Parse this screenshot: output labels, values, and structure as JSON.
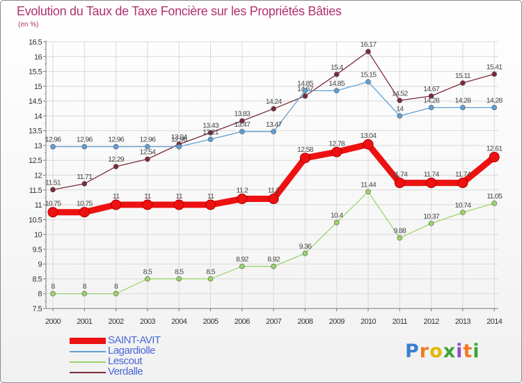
{
  "title": "Evolution du Taux de Taxe Foncière sur les Propriétés Bâties",
  "subtitle": "(en %)",
  "logo": {
    "text": "Proxiti"
  },
  "colors": {
    "title": "#b0306e",
    "grid": "#d8d8d8",
    "axis": "#777777",
    "tick_text": "#333333",
    "legend_text": "#4a66d8"
  },
  "chart_data": {
    "type": "line",
    "title": "Evolution du Taux de Taxe Foncière sur les Propriétés Bâties",
    "ylabel": "(en %)",
    "xlabel": "",
    "x": [
      "2000",
      "2001",
      "2002",
      "2003",
      "2004",
      "2005",
      "2006",
      "2007",
      "2008",
      "2009",
      "2010",
      "2011",
      "2012",
      "2013",
      "2014"
    ],
    "ylim": [
      7.5,
      16.5
    ],
    "yticks": [
      "7.5",
      "8",
      "8.5",
      "9",
      "9.5",
      "10",
      "10.5",
      "11",
      "11.5",
      "12",
      "12.5",
      "13",
      "13.5",
      "14",
      "14.5",
      "15",
      "15.5",
      "16",
      "16.5"
    ],
    "grid": true,
    "legend_position": "bottom-left",
    "series": [
      {
        "name": "Verdalle",
        "color": "#7a2a3a",
        "width": 1.3,
        "marker": 3.5,
        "values": [
          11.51,
          11.71,
          12.29,
          12.54,
          13.04,
          13.43,
          13.83,
          14.24,
          14.67,
          15.4,
          16.17,
          14.52,
          14.67,
          15.11,
          15.41
        ],
        "labels": [
          "11.51",
          "11.71",
          "12.29",
          "12.54",
          "13.04",
          "13.43",
          "13.83",
          "14.24",
          "14.67",
          "15.4",
          "16.17",
          "14.52",
          "14.67",
          "15.11",
          "15.41"
        ]
      },
      {
        "name": "Lagardiolle",
        "color": "#5f9fd4",
        "width": 1.3,
        "marker": 3.5,
        "values": [
          12.96,
          12.96,
          12.96,
          12.96,
          12.96,
          13.21,
          13.47,
          13.47,
          14.85,
          14.85,
          15.15,
          14,
          14.28,
          14.28,
          14.28
        ],
        "labels": [
          "12.96",
          "12.96",
          "12.96",
          "12.96",
          "12.96",
          "13.21",
          "13.47",
          "13.47",
          "14.85",
          "14.85",
          "15.15",
          "14",
          "14.28",
          "14.28",
          "14.28"
        ]
      },
      {
        "name": "Lescout",
        "color": "#9bd46a",
        "width": 1.3,
        "marker": 3.5,
        "values": [
          8,
          8,
          8,
          8.5,
          8.5,
          8.5,
          8.92,
          8.92,
          9.36,
          10.4,
          11.44,
          9.88,
          10.37,
          10.74,
          11.05
        ],
        "labels": [
          "8",
          "8",
          "8",
          "8.5",
          "8.5",
          "8.5",
          "8.92",
          "8.92",
          "9.36",
          "10.4",
          "11.44",
          "9.88",
          "10.37",
          "10.74",
          "11.05"
        ]
      },
      {
        "name": "SAINT-AVIT",
        "color": "#ee1111",
        "width": 9,
        "marker": 7,
        "values": [
          10.75,
          10.75,
          11,
          11,
          11,
          11,
          11.2,
          11.2,
          12.58,
          12.78,
          13.04,
          11.74,
          11.74,
          11.74,
          12.61
        ],
        "labels": [
          "10.75",
          "10.75",
          "11",
          "11",
          "11",
          "11",
          "11.2",
          "11.2",
          "12.58",
          "12.78",
          "13.04",
          "11.74",
          "11.74",
          "11.74",
          "12.61"
        ]
      }
    ],
    "legend_order": [
      "SAINT-AVIT",
      "Lagardiolle",
      "Lescout",
      "Verdalle"
    ]
  }
}
